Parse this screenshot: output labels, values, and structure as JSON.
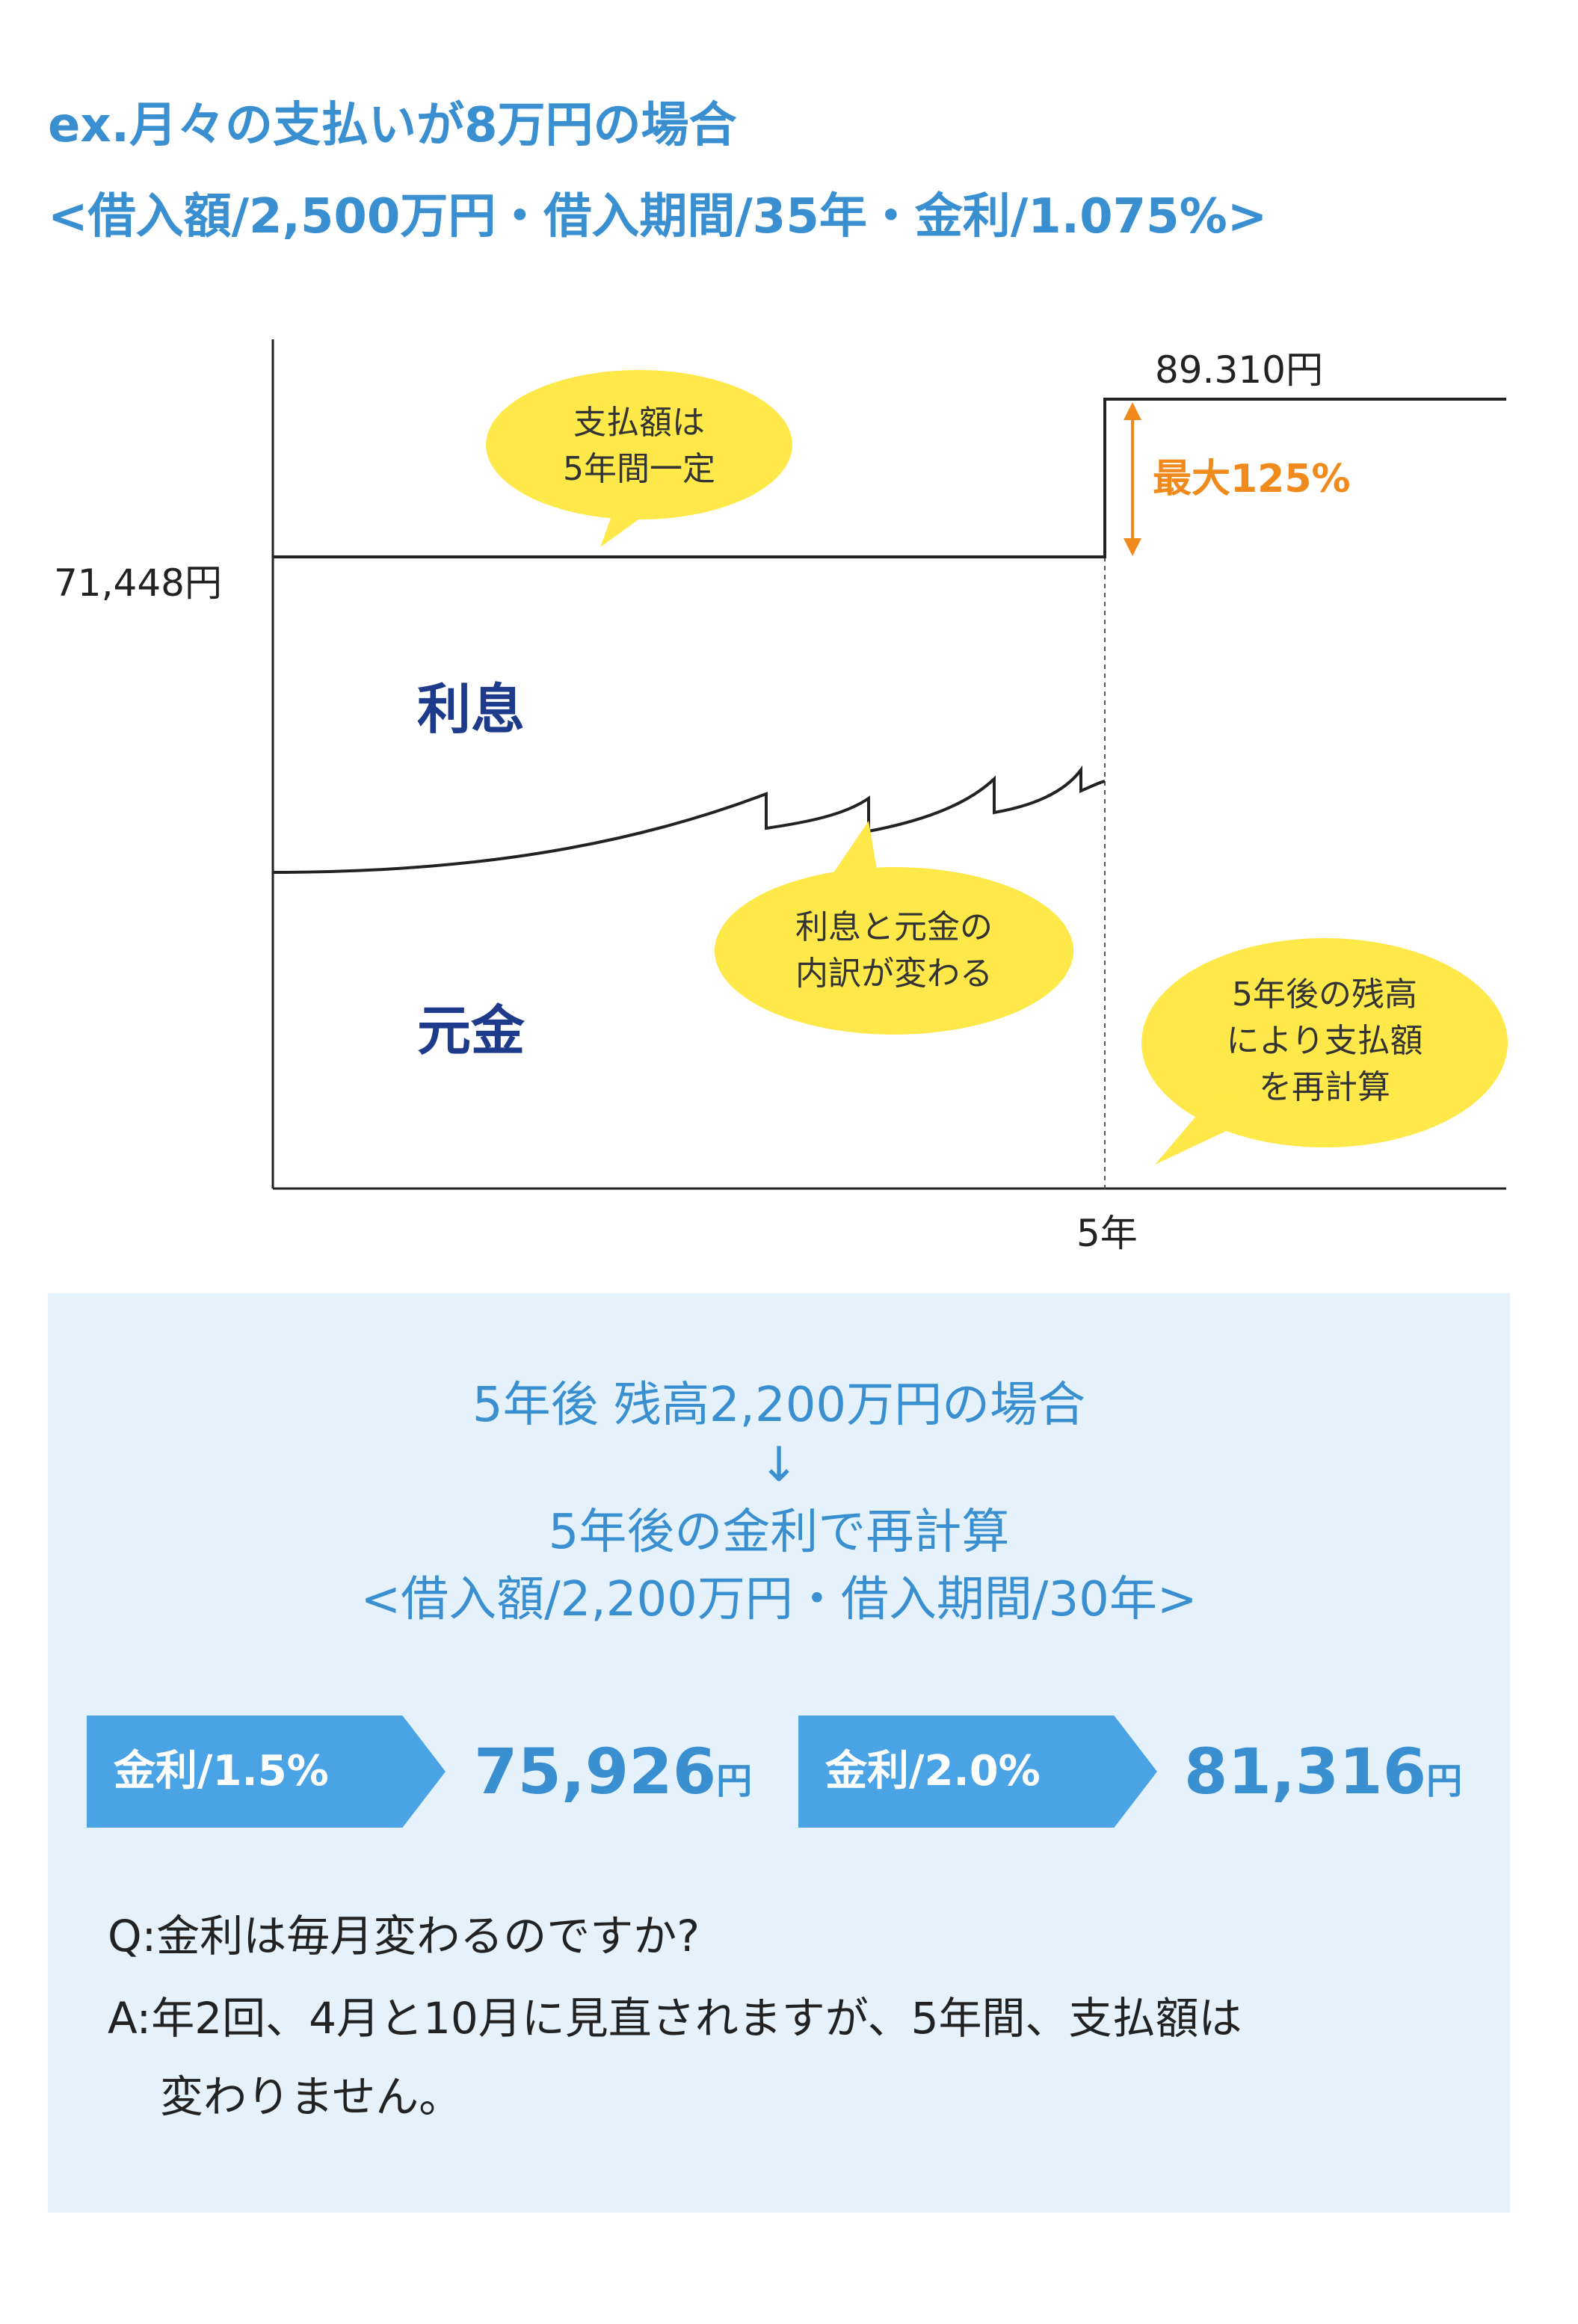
{
  "header": {
    "line1": "ex.月々の支払いが8万円の場合",
    "line2": "<借入額/2,500万円・借入期間/35年・金利/1.075%>"
  },
  "diagram": {
    "before_payment": "71,448円",
    "after_payment": "89.310円",
    "max_increase": "最大125%",
    "interest_label": "利息",
    "principal_label": "元金",
    "x_tick": "5年",
    "bubbles": {
      "fixed_payment": [
        "支払額は",
        "5年間一定"
      ],
      "breakdown_changes": [
        "利息と元金の",
        "内訳が変わる"
      ],
      "recalculation": [
        "5年後の残高",
        "により支払額",
        "を再計算"
      ]
    },
    "colors": {
      "bubble": "#ffe94a",
      "accent_orange": "#f08a1c",
      "label_navy": "#1e3a8a"
    }
  },
  "panel": {
    "line1": "5年後 残高2,200万円の場合",
    "arrow": "↓",
    "line2": "5年後の金利で再計算",
    "line3": "<借入額/2,200万円・借入期間/30年>",
    "rates": [
      {
        "tag": "金利/1.5%",
        "amount": "75,926",
        "unit": "円"
      },
      {
        "tag": "金利/2.0%",
        "amount": "81,316",
        "unit": "円"
      }
    ],
    "question": "Q:金利は毎月変わるのですか?",
    "answer_line1": "A:年2回、4月と10月に見直されますが、5年間、支払額は",
    "answer_line2": "変わりません。",
    "colors": {
      "panel_bg": "#e6f2fb",
      "tag_bg": "#4aa3e4",
      "text_blue": "#3a8fd0"
    }
  }
}
